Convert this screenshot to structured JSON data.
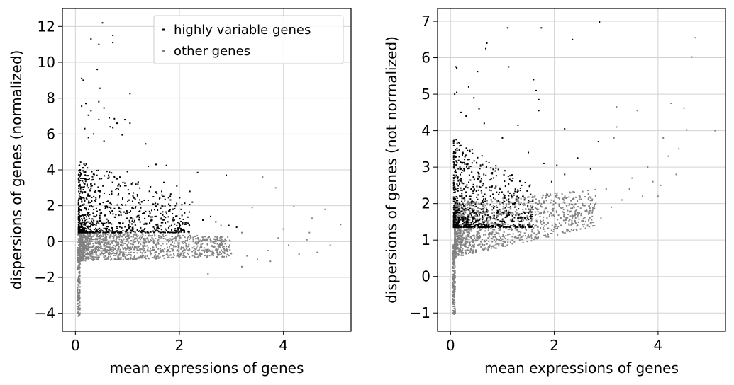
{
  "chart_data": [
    {
      "type": "scatter",
      "xlabel": "mean expressions of genes",
      "ylabel": "dispersions of genes (normalized)",
      "xlim": [
        -0.25,
        5.3
      ],
      "ylim": [
        -5,
        13
      ],
      "xticks": [
        "0",
        "2",
        "4"
      ],
      "xtick_values": [
        0,
        2,
        4
      ],
      "yticks": [
        "−4",
        "−2",
        "0",
        "2",
        "4",
        "6",
        "8",
        "10",
        "12"
      ],
      "ytick_values": [
        -4,
        -2,
        0,
        2,
        4,
        6,
        8,
        10,
        12
      ],
      "grid": true,
      "legend": {
        "placement": "top-right",
        "entries": [
          {
            "label": "highly variable genes",
            "color": "#000000"
          },
          {
            "label": "other genes",
            "color": "#808080"
          }
        ]
      },
      "series": [
        {
          "name": "highly variable genes",
          "color": "#000000",
          "points": [
            [
              0.52,
              12.2
            ],
            [
              0.3,
              11.3
            ],
            [
              0.45,
              11.0
            ],
            [
              0.72,
              11.5
            ],
            [
              0.72,
              11.1
            ],
            [
              0.42,
              9.6
            ],
            [
              0.12,
              9.1
            ],
            [
              0.15,
              9.0
            ],
            [
              0.47,
              8.55
            ],
            [
              1.05,
              8.25
            ],
            [
              0.12,
              7.55
            ],
            [
              0.45,
              7.8
            ],
            [
              0.2,
              7.7
            ],
            [
              0.3,
              7.3
            ],
            [
              0.25,
              7.05
            ],
            [
              0.55,
              7.45
            ],
            [
              0.65,
              6.9
            ],
            [
              0.45,
              6.8
            ],
            [
              0.75,
              6.85
            ],
            [
              0.8,
              6.6
            ],
            [
              1.05,
              6.6
            ],
            [
              0.95,
              6.8
            ],
            [
              0.9,
              5.95
            ],
            [
              0.67,
              6.4
            ],
            [
              0.72,
              6.35
            ],
            [
              1.35,
              5.45
            ],
            [
              0.18,
              6.3
            ],
            [
              0.35,
              6.0
            ],
            [
              0.25,
              5.8
            ],
            [
              0.55,
              5.6
            ],
            [
              1.4,
              4.2
            ],
            [
              1.55,
              4.3
            ],
            [
              1.75,
              4.25
            ],
            [
              2.35,
              3.85
            ],
            [
              2.9,
              3.7
            ],
            [
              1.0,
              3.9
            ],
            [
              0.8,
              3.5
            ],
            [
              1.2,
              3.2
            ],
            [
              1.7,
              3.3
            ],
            [
              1.95,
              3.1
            ],
            [
              2.2,
              2.8
            ],
            [
              2.25,
              2.2
            ],
            [
              1.5,
              2.5
            ],
            [
              2.1,
              1.6
            ],
            [
              2.6,
              1.4
            ],
            [
              2.45,
              1.2
            ],
            [
              2.0,
              1.0
            ],
            [
              1.85,
              0.9
            ],
            [
              3.1,
              0.8
            ],
            [
              2.95,
              0.9
            ],
            [
              2.7,
              1.1
            ],
            [
              1.65,
              1.3
            ]
          ],
          "dense_region": {
            "x": [
              0.06,
              2.2
            ],
            "y": [
              0.5,
              4.5
            ],
            "count": 800
          }
        },
        {
          "name": "other genes",
          "color": "#808080",
          "points": [
            [
              3.6,
              3.6
            ],
            [
              3.85,
              3.0
            ],
            [
              4.2,
              1.95
            ],
            [
              3.4,
              1.9
            ],
            [
              4.8,
              1.8
            ],
            [
              4.55,
              1.3
            ],
            [
              5.1,
              0.95
            ],
            [
              4.0,
              0.7
            ],
            [
              4.5,
              0.5
            ],
            [
              4.3,
              -0.7
            ],
            [
              4.65,
              -0.6
            ],
            [
              3.5,
              -1.0
            ],
            [
              3.2,
              -1.4
            ],
            [
              3.3,
              -0.8
            ],
            [
              2.55,
              -1.8
            ],
            [
              3.75,
              -1.1
            ],
            [
              4.9,
              -0.2
            ],
            [
              4.1,
              -0.2
            ],
            [
              3.9,
              0.2
            ],
            [
              3.2,
              0.5
            ],
            [
              2.8,
              0.9
            ],
            [
              3.7,
              -0.5
            ],
            [
              4.45,
              0.1
            ],
            [
              2.95,
              -0.3
            ]
          ],
          "dense_region": {
            "x": [
              0.08,
              3.0
            ],
            "y": [
              -1.0,
              0.6
            ],
            "count": 1400
          },
          "vertical_band": {
            "x": 0.04,
            "y": [
              -4.2,
              0.5
            ]
          }
        }
      ]
    },
    {
      "type": "scatter",
      "xlabel": "mean expressions of genes",
      "ylabel": "dispersions of genes (not normalized)",
      "xlim": [
        -0.25,
        5.3
      ],
      "ylim": [
        -1.5,
        7.35
      ],
      "xticks": [
        "0",
        "2",
        "4"
      ],
      "xtick_values": [
        0,
        2,
        4
      ],
      "yticks": [
        "−1",
        "0",
        "1",
        "2",
        "3",
        "4",
        "5",
        "6",
        "7"
      ],
      "ytick_values": [
        -1,
        0,
        1,
        2,
        3,
        4,
        5,
        6,
        7
      ],
      "grid": true,
      "series": [
        {
          "name": "highly variable genes",
          "color": "#000000",
          "points": [
            [
              2.87,
              6.98
            ],
            [
              1.1,
              6.82
            ],
            [
              1.75,
              6.82
            ],
            [
              0.7,
              6.4
            ],
            [
              0.68,
              6.25
            ],
            [
              2.35,
              6.5
            ],
            [
              0.1,
              5.75
            ],
            [
              0.12,
              5.72
            ],
            [
              0.52,
              5.62
            ],
            [
              1.12,
              5.75
            ],
            [
              0.08,
              5.0
            ],
            [
              0.12,
              5.05
            ],
            [
              0.35,
              5.2
            ],
            [
              0.45,
              4.9
            ],
            [
              1.6,
              5.4
            ],
            [
              1.65,
              5.1
            ],
            [
              1.7,
              4.85
            ],
            [
              1.7,
              4.55
            ],
            [
              0.2,
              4.5
            ],
            [
              0.3,
              4.4
            ],
            [
              0.55,
              4.6
            ],
            [
              0.65,
              4.2
            ],
            [
              1.3,
              4.15
            ],
            [
              2.2,
              4.05
            ],
            [
              2.85,
              3.7
            ],
            [
              1.0,
              3.8
            ],
            [
              1.5,
              3.4
            ],
            [
              1.8,
              3.1
            ],
            [
              2.45,
              3.25
            ],
            [
              2.7,
              2.95
            ],
            [
              2.2,
              2.8
            ],
            [
              1.95,
              2.6
            ],
            [
              1.4,
              2.2
            ],
            [
              1.2,
              2.0
            ],
            [
              0.9,
              1.9
            ],
            [
              2.05,
              3.05
            ]
          ],
          "dense_region": {
            "x": [
              0.06,
              1.6
            ],
            "y": [
              1.35,
              3.8
            ],
            "count": 750
          }
        },
        {
          "name": "other genes",
          "color": "#808080",
          "points": [
            [
              4.72,
              6.55
            ],
            [
              4.65,
              6.02
            ],
            [
              4.25,
              4.75
            ],
            [
              4.5,
              4.62
            ],
            [
              3.2,
              4.65
            ],
            [
              3.2,
              4.1
            ],
            [
              3.6,
              4.55
            ],
            [
              4.55,
              4.02
            ],
            [
              5.1,
              4.0
            ],
            [
              3.15,
              3.8
            ],
            [
              4.1,
              3.8
            ],
            [
              4.4,
              3.5
            ],
            [
              4.2,
              3.3
            ],
            [
              3.8,
              3.0
            ],
            [
              3.5,
              2.7
            ],
            [
              3.9,
              2.6
            ],
            [
              4.35,
              2.8
            ],
            [
              4.05,
              2.5
            ],
            [
              3.3,
              2.1
            ],
            [
              3.1,
              1.9
            ],
            [
              2.8,
              2.0
            ],
            [
              2.6,
              1.8
            ],
            [
              2.4,
              1.7
            ],
            [
              3.0,
              2.4
            ],
            [
              3.45,
              2.4
            ],
            [
              3.7,
              2.2
            ],
            [
              2.9,
              1.6
            ],
            [
              4.0,
              2.2
            ]
          ],
          "dense_region": {
            "x": [
              0.08,
              2.8
            ],
            "y": [
              0.6,
              2.1
            ],
            "count": 1400
          },
          "vertical_band": {
            "x": 0.04,
            "y": [
              -1.05,
              0.9
            ]
          }
        }
      ]
    }
  ]
}
